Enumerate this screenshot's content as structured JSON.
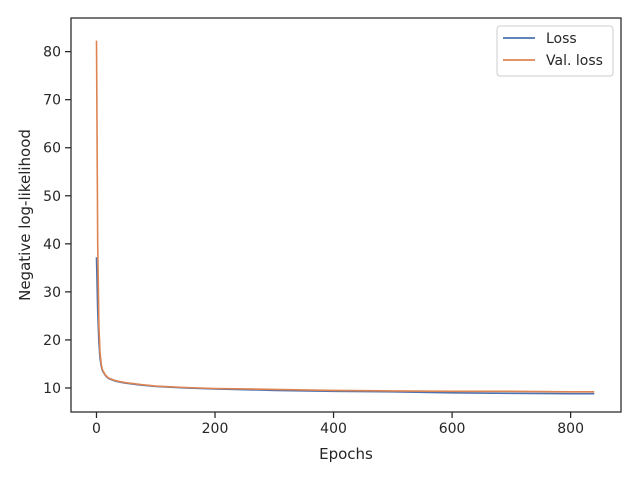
{
  "chart_data": {
    "type": "line",
    "xlabel": "Epochs",
    "ylabel": "Negative log-likelihood",
    "xlim": [
      -43,
      885
    ],
    "ylim": [
      5,
      87
    ],
    "x_ticks": [
      0,
      200,
      400,
      600,
      800
    ],
    "y_ticks": [
      10,
      20,
      30,
      40,
      50,
      60,
      70,
      80
    ],
    "grid": false,
    "legend_position": "top-right",
    "series": [
      {
        "name": "Loss",
        "color": "#4c72b0",
        "x": [
          0,
          2,
          4,
          6,
          8,
          10,
          15,
          20,
          30,
          40,
          50,
          75,
          100,
          150,
          200,
          300,
          400,
          500,
          600,
          700,
          800,
          840
        ],
        "y": [
          37.2,
          26.0,
          19.5,
          16.2,
          14.6,
          13.6,
          12.6,
          12.0,
          11.5,
          11.2,
          11.0,
          10.6,
          10.3,
          10.0,
          9.8,
          9.5,
          9.3,
          9.2,
          9.0,
          8.9,
          8.8,
          8.8
        ]
      },
      {
        "name": "Val. loss",
        "color": "#dd8452",
        "x": [
          0,
          2,
          4,
          6,
          8,
          10,
          15,
          20,
          30,
          40,
          50,
          75,
          100,
          150,
          200,
          300,
          400,
          500,
          600,
          700,
          800,
          840
        ],
        "y": [
          82.3,
          40.0,
          23.0,
          17.5,
          15.0,
          13.8,
          12.7,
          12.1,
          11.6,
          11.3,
          11.1,
          10.7,
          10.4,
          10.1,
          9.9,
          9.7,
          9.5,
          9.4,
          9.3,
          9.3,
          9.2,
          9.2
        ]
      }
    ]
  }
}
